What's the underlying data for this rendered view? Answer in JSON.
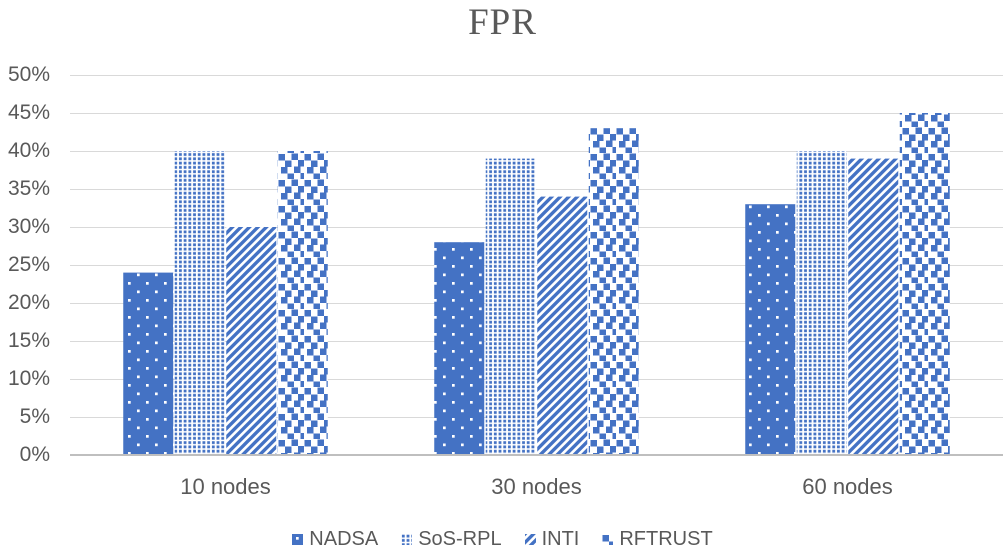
{
  "chart_data": {
    "type": "bar",
    "title": "FPR",
    "categories": [
      "10 nodes",
      "30 nodes",
      "60 nodes"
    ],
    "series": [
      {
        "name": "NADSA",
        "pattern": "solid-with-white-dots",
        "values": [
          24,
          28,
          33
        ]
      },
      {
        "name": "SoS-RPL",
        "pattern": "small-square-dot-grid",
        "values": [
          40,
          39,
          40
        ]
      },
      {
        "name": "INTI",
        "pattern": "diagonal-stripes-up",
        "values": [
          30,
          34,
          39
        ]
      },
      {
        "name": "RFTRUST",
        "pattern": "scattered-large-squares",
        "values": [
          40,
          43,
          45
        ]
      }
    ],
    "xlabel": "",
    "ylabel": "",
    "ylim": [
      0,
      50
    ],
    "ytick_step": 5,
    "ytick_labels": [
      "0%",
      "5%",
      "10%",
      "15%",
      "20%",
      "25%",
      "30%",
      "35%",
      "40%",
      "45%",
      "50%"
    ],
    "grid": true,
    "legend_position": "bottom",
    "colors": {
      "bar_blue": "#4472C4",
      "text": "#595959",
      "gridline": "#D9D9D9",
      "axis_line": "#BFBFBF",
      "background": "#FFFFFF"
    }
  }
}
